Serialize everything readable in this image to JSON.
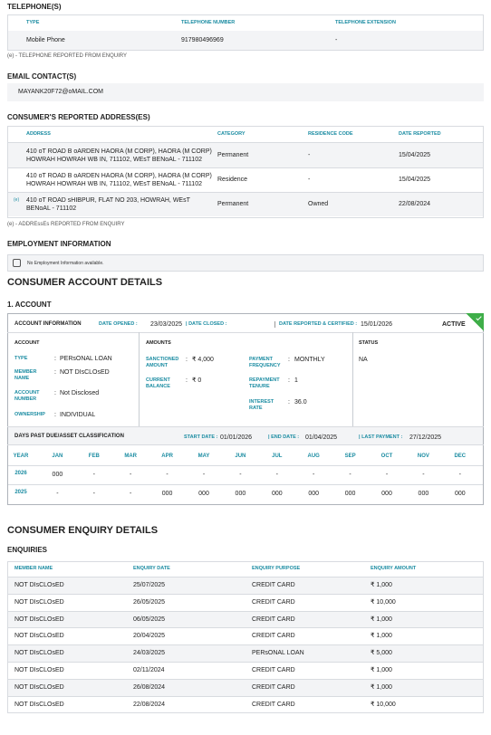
{
  "telephones": {
    "title": "TELEPHONE(S)",
    "headers": [
      "TYPE",
      "TELEPHONE NUMBER",
      "TELEPHONE EXTENSION"
    ],
    "rows": [
      [
        "Mobile Phone",
        "917980496969",
        "-"
      ]
    ],
    "note": "(e) - TELEPHONE REPORTED FROM ENQUIRY"
  },
  "email": {
    "title": "EMAIL CONTACT(S)",
    "values": [
      "MAYANK20F72@oMAIL.COM"
    ]
  },
  "addresses": {
    "title": "CONSUMER'S REPORTED ADDRESS(ES)",
    "headers": [
      "ADDRESS",
      "CATEGORY",
      "RESIDENCE CODE",
      "DATE REPORTED"
    ],
    "rows": [
      {
        "address": "410 oT ROAD B oARDEN HAORA (M CORP), HAORA (M CORP) HOWRAH HOWRAH WB IN, 711102, WEsT BENoAL - 711102",
        "category": "Permanent",
        "residence_code": "-",
        "date_reported": "15/04/2025"
      },
      {
        "address": "410 oT ROAD B oARDEN HAORA (M CORP), HAORA (M CORP) HOWRAH HOWRAH WB IN, 711102, WEsT BENoAL - 711102",
        "category": "Residence",
        "residence_code": "-",
        "date_reported": "15/04/2025"
      },
      {
        "marker": "(e)",
        "address": "410 oT ROAD sHIBPUR, FLAT NO 203, HOWRAH, WEsT BENoAL - 711102",
        "category": "Permanent",
        "residence_code": "Owned",
        "date_reported": "22/08/2024"
      }
    ],
    "note": "(e) - ADDREssEs REPORTED FROM ENQUIRY"
  },
  "employment": {
    "title": "EMPLOYMENT INFORMATION",
    "message": "No Employment Information available."
  },
  "account_details": {
    "title": "CONSUMER ACCOUNT DETAILS",
    "accounts": [
      {
        "title": "1. ACCOUNT",
        "info_label": "ACCOUNT INFORMATION",
        "date_opened": {
          "label": "DATE OPENED :",
          "value": "23/03/2025"
        },
        "date_closed": {
          "label": "| DATE CLOSED :"
        },
        "date_reported": {
          "label": "DATE REPORTED & CERTIFIED :",
          "value": "15/01/2026"
        },
        "status_badge": "ACTIVE",
        "separator": ":",
        "account": {
          "title": "ACCOUNT",
          "fields": [
            {
              "label": "TYPE",
              "value": "PERsONAL LOAN"
            },
            {
              "label": "MEMBER NAME",
              "value": "NOT DIsCLOsED"
            },
            {
              "label": "ACCOUNT NUMBER",
              "value": "Not Disclosed"
            },
            {
              "label": "OWNERSHIP",
              "value": "INDIVIDUAL"
            }
          ]
        },
        "amounts": {
          "title": "AMOUNTS",
          "fields": [
            {
              "label": "SANCTIONED AMOUNT",
              "value": "₹ 4,000"
            },
            {
              "label": "CURRENT BALANCE",
              "value": "₹ 0"
            },
            {
              "label": "PAYMENT FREQUENCY",
              "value": "MONTHLY"
            },
            {
              "label": "REPAYMENT TENURE",
              "value": "1"
            },
            {
              "label": "INTEREST RATE",
              "value": "36.0"
            }
          ]
        },
        "status": {
          "title": "STATUS",
          "value": "NA"
        },
        "dpd": {
          "title": "DAYS PAST DUE/ASSET CLASSIFICATION",
          "start_date": {
            "label": "START DATE :",
            "value": "01/01/2026"
          },
          "end_date": {
            "label": "| END DATE :",
            "value": "01/04/2025"
          },
          "last_payment": {
            "label": "| LAST PAYMENT :",
            "value": "27/12/2025"
          },
          "columns": [
            "YEAR",
            "JAN",
            "FEB",
            "MAR",
            "APR",
            "MAY",
            "JUN",
            "JUL",
            "AUG",
            "SEP",
            "OCT",
            "NOV",
            "DEC"
          ],
          "rows": [
            [
              "2026",
              "000",
              "-",
              "-",
              "-",
              "-",
              "-",
              "-",
              "-",
              "-",
              "-",
              "-",
              "-"
            ],
            [
              "2025",
              "-",
              "-",
              "-",
              "000",
              "000",
              "000",
              "000",
              "000",
              "000",
              "000",
              "000",
              "000"
            ]
          ]
        }
      }
    ]
  },
  "enquiries": {
    "title": "CONSUMER ENQUIRY DETAILS",
    "subtitle": "ENQUIRIES",
    "headers": [
      "MEMBER NAME",
      "ENQUIRY DATE",
      "ENQUIRY PURPOSE",
      "ENQUIRY AMOUNT"
    ],
    "rows": [
      [
        "NOT DIsCLOsED",
        "25/07/2025",
        "CREDIT CARD",
        "₹ 1,000"
      ],
      [
        "NOT DIsCLOsED",
        "26/05/2025",
        "CREDIT CARD",
        "₹ 10,000"
      ],
      [
        "NOT DIsCLOsED",
        "06/05/2025",
        "CREDIT CARD",
        "₹ 1,000"
      ],
      [
        "NOT DIsCLOsED",
        "20/04/2025",
        "CREDIT CARD",
        "₹ 1,000"
      ],
      [
        "NOT DIsCLOsED",
        "24/03/2025",
        "PERsONAL LOAN",
        "₹ 5,000"
      ],
      [
        "NOT DIsCLOsED",
        "02/11/2024",
        "CREDIT CARD",
        "₹ 1,000"
      ],
      [
        "NOT DIsCLOsED",
        "26/08/2024",
        "CREDIT CARD",
        "₹ 1,000"
      ],
      [
        "NOT DIsCLOsED",
        "22/08/2024",
        "CREDIT CARD",
        "₹ 10,000"
      ]
    ]
  }
}
